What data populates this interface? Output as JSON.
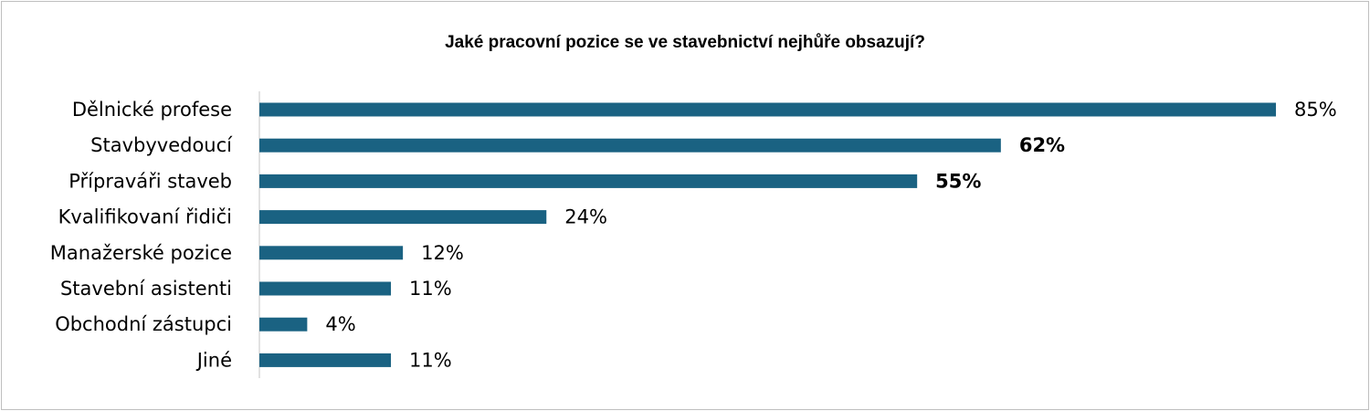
{
  "chart_data": {
    "type": "bar",
    "orientation": "horizontal",
    "title": "Jaké pracovní pozice se ve stavebnictví nejhůře obsazují?",
    "categories": [
      "Dělnické profese",
      "Stavbyvedoucí",
      "Přípraváři staveb",
      "Kvalifikovaní řidiči",
      "Manažerské pozice",
      "Stavební asistenti",
      "Obchodní zástupci",
      "Jiné"
    ],
    "values": [
      85,
      62,
      55,
      24,
      12,
      11,
      4,
      11
    ],
    "value_labels": [
      "85%",
      "62%",
      "55%",
      "24%",
      "12%",
      "11%",
      "4%",
      "11%"
    ],
    "bold_value_labels": [
      false,
      true,
      true,
      false,
      false,
      false,
      false,
      false
    ],
    "unit": "%",
    "xlim": [
      0,
      85
    ],
    "grid": false,
    "legend": "none",
    "bar_color": "#1a6282",
    "axis_color": "#d9d9d9"
  }
}
